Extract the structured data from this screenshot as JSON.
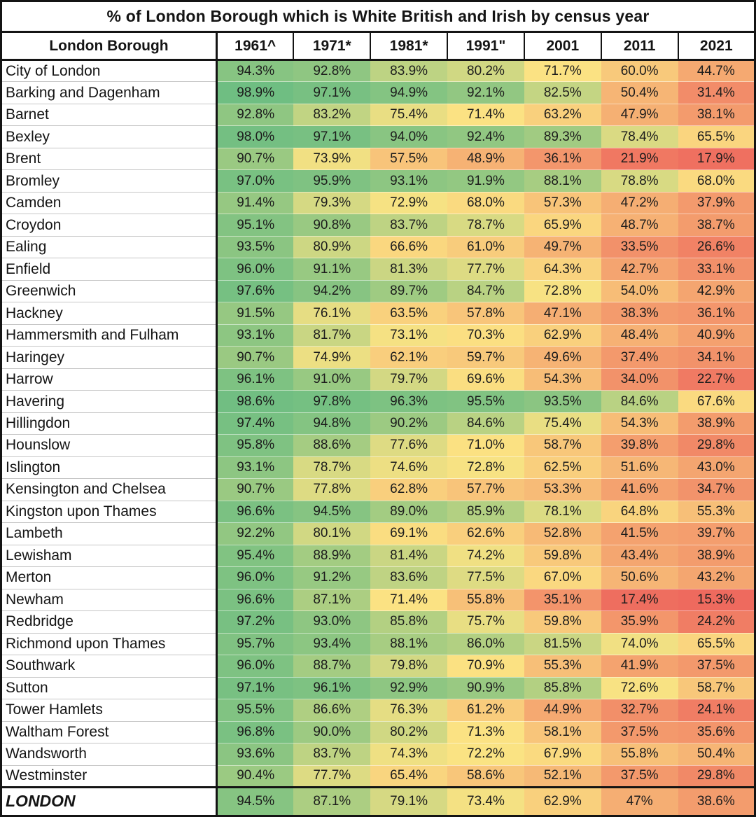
{
  "title": "% of London Borough which is White British and Irish by census year",
  "colormap": {
    "min_value": 15.3,
    "mid_value": 72.0,
    "max_value": 98.9,
    "min_color": "#ee6a5e",
    "mid_color": "#fbe383",
    "max_color": "#6fbe82"
  },
  "chart_data": {
    "type": "heatmap",
    "title": "% of London Borough which is White British and Irish by census year",
    "row_header": "London Borough",
    "columns": [
      "1961^",
      "1971*",
      "1981*",
      "1991\"",
      "2001",
      "2011",
      "2021"
    ],
    "unit": "%",
    "color_scale_note": "red=low, yellow=mid, green=high",
    "rows": [
      {
        "name": "City of London",
        "values": [
          "94.3%",
          "92.8%",
          "83.9%",
          "80.2%",
          "71.7%",
          "60.0%",
          "44.7%"
        ]
      },
      {
        "name": "Barking and Dagenham",
        "values": [
          "98.9%",
          "97.1%",
          "94.9%",
          "92.1%",
          "82.5%",
          "50.4%",
          "31.4%"
        ]
      },
      {
        "name": "Barnet",
        "values": [
          "92.8%",
          "83.2%",
          "75.4%",
          "71.4%",
          "63.2%",
          "47.9%",
          "38.1%"
        ]
      },
      {
        "name": "Bexley",
        "values": [
          "98.0%",
          "97.1%",
          "94.0%",
          "92.4%",
          "89.3%",
          "78.4%",
          "65.5%"
        ]
      },
      {
        "name": "Brent",
        "values": [
          "90.7%",
          "73.9%",
          "57.5%",
          "48.9%",
          "36.1%",
          "21.9%",
          "17.9%"
        ]
      },
      {
        "name": "Bromley",
        "values": [
          "97.0%",
          "95.9%",
          "93.1%",
          "91.9%",
          "88.1%",
          "78.8%",
          "68.0%"
        ]
      },
      {
        "name": "Camden",
        "values": [
          "91.4%",
          "79.3%",
          "72.9%",
          "68.0%",
          "57.3%",
          "47.2%",
          "37.9%"
        ]
      },
      {
        "name": "Croydon",
        "values": [
          "95.1%",
          "90.8%",
          "83.7%",
          "78.7%",
          "65.9%",
          "48.7%",
          "38.7%"
        ]
      },
      {
        "name": "Ealing",
        "values": [
          "93.5%",
          "80.9%",
          "66.6%",
          "61.0%",
          "49.7%",
          "33.5%",
          "26.6%"
        ]
      },
      {
        "name": "Enfield",
        "values": [
          "96.0%",
          "91.1%",
          "81.3%",
          "77.7%",
          "64.3%",
          "42.7%",
          "33.1%"
        ]
      },
      {
        "name": "Greenwich",
        "values": [
          "97.6%",
          "94.2%",
          "89.7%",
          "84.7%",
          "72.8%",
          "54.0%",
          "42.9%"
        ]
      },
      {
        "name": "Hackney",
        "values": [
          "91.5%",
          "76.1%",
          "63.5%",
          "57.8%",
          "47.1%",
          "38.3%",
          "36.1%"
        ]
      },
      {
        "name": "Hammersmith and Fulham",
        "values": [
          "93.1%",
          "81.7%",
          "73.1%",
          "70.3%",
          "62.9%",
          "48.4%",
          "40.9%"
        ]
      },
      {
        "name": "Haringey",
        "values": [
          "90.7%",
          "74.9%",
          "62.1%",
          "59.7%",
          "49.6%",
          "37.4%",
          "34.1%"
        ]
      },
      {
        "name": "Harrow",
        "values": [
          "96.1%",
          "91.0%",
          "79.7%",
          "69.6%",
          "54.3%",
          "34.0%",
          "22.7%"
        ]
      },
      {
        "name": "Havering",
        "values": [
          "98.6%",
          "97.8%",
          "96.3%",
          "95.5%",
          "93.5%",
          "84.6%",
          "67.6%"
        ]
      },
      {
        "name": "Hillingdon",
        "values": [
          "97.4%",
          "94.8%",
          "90.2%",
          "84.6%",
          "75.4%",
          "54.3%",
          "38.9%"
        ]
      },
      {
        "name": "Hounslow",
        "values": [
          "95.8%",
          "88.6%",
          "77.6%",
          "71.0%",
          "58.7%",
          "39.8%",
          "29.8%"
        ]
      },
      {
        "name": "Islington",
        "values": [
          "93.1%",
          "78.7%",
          "74.6%",
          "72.8%",
          "62.5%",
          "51.6%",
          "43.0%"
        ]
      },
      {
        "name": "Kensington and Chelsea",
        "values": [
          "90.7%",
          "77.8%",
          "62.8%",
          "57.7%",
          "53.3%",
          "41.6%",
          "34.7%"
        ]
      },
      {
        "name": "Kingston upon Thames",
        "values": [
          "96.6%",
          "94.5%",
          "89.0%",
          "85.9%",
          "78.1%",
          "64.8%",
          "55.3%"
        ]
      },
      {
        "name": "Lambeth",
        "values": [
          "92.2%",
          "80.1%",
          "69.1%",
          "62.6%",
          "52.8%",
          "41.5%",
          "39.7%"
        ]
      },
      {
        "name": "Lewisham",
        "values": [
          "95.4%",
          "88.9%",
          "81.4%",
          "74.2%",
          "59.8%",
          "43.4%",
          "38.9%"
        ]
      },
      {
        "name": "Merton",
        "values": [
          "96.0%",
          "91.2%",
          "83.6%",
          "77.5%",
          "67.0%",
          "50.6%",
          "43.2%"
        ]
      },
      {
        "name": "Newham",
        "values": [
          "96.6%",
          "87.1%",
          "71.4%",
          "55.8%",
          "35.1%",
          "17.4%",
          "15.3%"
        ]
      },
      {
        "name": "Redbridge",
        "values": [
          "97.2%",
          "93.0%",
          "85.8%",
          "75.7%",
          "59.8%",
          "35.9%",
          "24.2%"
        ]
      },
      {
        "name": "Richmond upon Thames",
        "values": [
          "95.7%",
          "93.4%",
          "88.1%",
          "86.0%",
          "81.5%",
          "74.0%",
          "65.5%"
        ]
      },
      {
        "name": "Southwark",
        "values": [
          "96.0%",
          "88.7%",
          "79.8%",
          "70.9%",
          "55.3%",
          "41.9%",
          "37.5%"
        ]
      },
      {
        "name": "Sutton",
        "values": [
          "97.1%",
          "96.1%",
          "92.9%",
          "90.9%",
          "85.8%",
          "72.6%",
          "58.7%"
        ]
      },
      {
        "name": "Tower Hamlets",
        "values": [
          "95.5%",
          "86.6%",
          "76.3%",
          "61.2%",
          "44.9%",
          "32.7%",
          "24.1%"
        ]
      },
      {
        "name": "Waltham Forest",
        "values": [
          "96.8%",
          "90.0%",
          "80.2%",
          "71.3%",
          "58.1%",
          "37.5%",
          "35.6%"
        ]
      },
      {
        "name": "Wandsworth",
        "values": [
          "93.6%",
          "83.7%",
          "74.3%",
          "72.2%",
          "67.9%",
          "55.8%",
          "50.4%"
        ]
      },
      {
        "name": "Westminster",
        "values": [
          "90.4%",
          "77.7%",
          "65.4%",
          "58.6%",
          "52.1%",
          "37.5%",
          "29.8%"
        ]
      }
    ],
    "summary_row": {
      "name": "LONDON",
      "values": [
        "94.5%",
        "87.1%",
        "79.1%",
        "73.4%",
        "62.9%",
        "47%",
        "38.6%"
      ]
    }
  }
}
